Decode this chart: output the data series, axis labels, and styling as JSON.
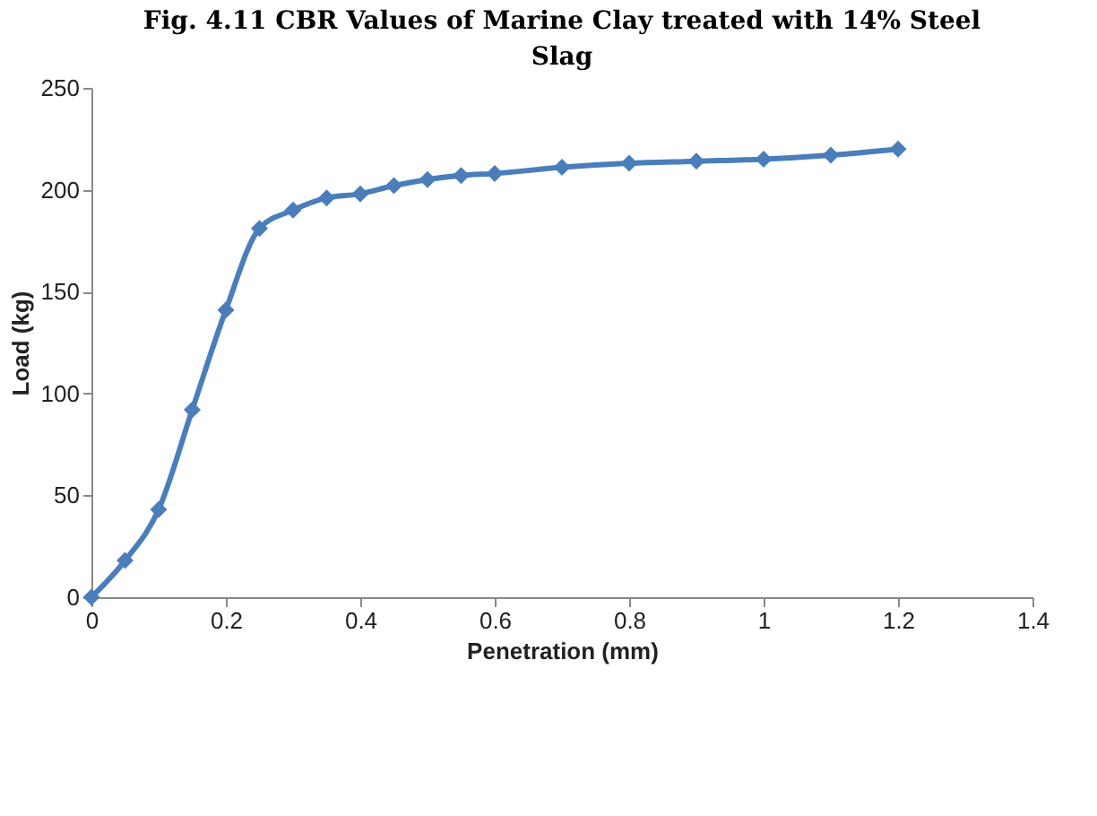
{
  "chart_data": {
    "type": "line",
    "title": "Fig. 4.11 CBR Values of Marine Clay treated with 14% Steel Slag",
    "xlabel": "Penetration (mm)",
    "ylabel": "Load (kg)",
    "x": [
      0,
      0.05,
      0.1,
      0.15,
      0.2,
      0.25,
      0.3,
      0.35,
      0.4,
      0.45,
      0.5,
      0.55,
      0.6,
      0.7,
      0.8,
      0.9,
      1.0,
      1.1,
      1.2
    ],
    "series": [
      {
        "color": "#4a7ebb",
        "values": [
          0,
          18,
          43,
          92,
          141,
          181,
          190,
          196,
          198,
          202,
          205,
          207,
          208,
          211,
          213,
          214,
          215,
          217,
          220
        ]
      }
    ],
    "xlim": [
      0,
      1.4
    ],
    "xticks": [
      0,
      0.2,
      0.4,
      0.6,
      0.8,
      1,
      1.2,
      1.4
    ],
    "ylim": [
      0,
      250
    ],
    "yticks": [
      0,
      50,
      100,
      150,
      200,
      250
    ],
    "marker": "diamond",
    "grid": false,
    "legend": false
  }
}
